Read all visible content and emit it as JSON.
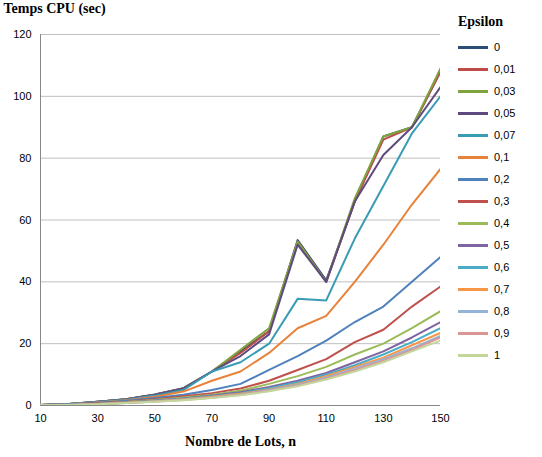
{
  "chart_data": {
    "type": "line",
    "y_label": "Temps CPU (sec)",
    "x_label": "Nombre de Lots, n",
    "legend_title": "Epsilon",
    "legend": "right",
    "grid": "y",
    "x": [
      10,
      20,
      30,
      40,
      50,
      60,
      70,
      80,
      90,
      100,
      110,
      120,
      130,
      140,
      150
    ],
    "xlim": [
      10,
      150
    ],
    "xticks": [
      10,
      30,
      50,
      70,
      90,
      110,
      130,
      150
    ],
    "ylim": [
      0,
      120
    ],
    "yticks": [
      0,
      20,
      40,
      60,
      80,
      100,
      120
    ],
    "series": [
      {
        "name": "0",
        "color": "#2C4D75",
        "values": [
          0.2,
          0.5,
          1.2,
          2,
          3.6,
          5.6,
          11,
          17.5,
          24,
          53.5,
          40.5,
          66,
          87,
          90,
          108
        ]
      },
      {
        "name": "0,01",
        "color": "#BE4B48",
        "values": [
          0.2,
          0.5,
          1.2,
          2,
          3.5,
          5.5,
          11,
          17,
          24,
          53,
          40,
          66,
          86,
          90,
          108
        ]
      },
      {
        "name": "0,03",
        "color": "#7FA33F",
        "values": [
          0.2,
          0.5,
          1.2,
          2,
          3.5,
          5.5,
          11,
          18,
          25,
          53,
          40,
          67,
          87,
          90,
          109
        ]
      },
      {
        "name": "0,05",
        "color": "#5E4A7E",
        "values": [
          0.2,
          0.5,
          1.2,
          2,
          3.5,
          5.5,
          11,
          16,
          23,
          52,
          40,
          66,
          81,
          90,
          103
        ]
      },
      {
        "name": "0,07",
        "color": "#3A9BB5",
        "values": [
          0.2,
          0.5,
          1.1,
          1.9,
          3.2,
          5,
          11,
          14,
          20,
          34.5,
          34,
          54,
          71,
          88,
          100
        ]
      },
      {
        "name": "0,1",
        "color": "#E8823A",
        "values": [
          0.2,
          0.4,
          1,
          1.7,
          2.8,
          4.5,
          8,
          11,
          17,
          25,
          29,
          40,
          52,
          65,
          76.5
        ]
      },
      {
        "name": "0,2",
        "color": "#4F81BD",
        "values": [
          0.2,
          0.4,
          0.9,
          1.5,
          2.4,
          3.5,
          5,
          7,
          11.5,
          16,
          21,
          27,
          32,
          40,
          48
        ]
      },
      {
        "name": "0,3",
        "color": "#C0504D",
        "values": [
          0.1,
          0.3,
          0.7,
          1.2,
          2,
          3,
          4,
          5.5,
          8,
          11.5,
          15,
          20.5,
          24.5,
          32,
          38.5
        ]
      },
      {
        "name": "0,4",
        "color": "#9BBB59",
        "values": [
          0.1,
          0.3,
          0.6,
          1.1,
          1.8,
          2.6,
          3.5,
          4.8,
          7,
          9.5,
          12.5,
          16.5,
          20,
          25,
          30.5
        ]
      },
      {
        "name": "0,5",
        "color": "#8064A2",
        "values": [
          0.1,
          0.3,
          0.6,
          1,
          1.6,
          2.3,
          3.2,
          4.3,
          6,
          8,
          10.5,
          14,
          17.5,
          22,
          27
        ]
      },
      {
        "name": "0,6",
        "color": "#4BACC6",
        "values": [
          0.1,
          0.3,
          0.5,
          0.9,
          1.5,
          2.2,
          3,
          4,
          5.6,
          7.5,
          10,
          13,
          16.5,
          20.5,
          25
        ]
      },
      {
        "name": "0,7",
        "color": "#F79646",
        "values": [
          0.1,
          0.2,
          0.5,
          0.9,
          1.4,
          2,
          2.8,
          3.8,
          5.2,
          7,
          9.5,
          12.5,
          15.5,
          19.5,
          23.5
        ]
      },
      {
        "name": "0,8",
        "color": "#95B3D7",
        "values": [
          0.1,
          0.2,
          0.5,
          0.8,
          1.3,
          1.9,
          2.6,
          3.6,
          5,
          6.7,
          9,
          12,
          15,
          18.5,
          22.5
        ]
      },
      {
        "name": "0,9",
        "color": "#D99694",
        "values": [
          0.1,
          0.2,
          0.5,
          0.8,
          1.3,
          1.8,
          2.5,
          3.5,
          4.8,
          6.5,
          8.7,
          11.5,
          14.5,
          18,
          22
        ]
      },
      {
        "name": "1",
        "color": "#C3D69B",
        "values": [
          0.1,
          0.2,
          0.4,
          0.8,
          1.2,
          1.7,
          2.4,
          3.3,
          4.6,
          6.2,
          8.4,
          11,
          14,
          17.5,
          21
        ]
      }
    ]
  }
}
